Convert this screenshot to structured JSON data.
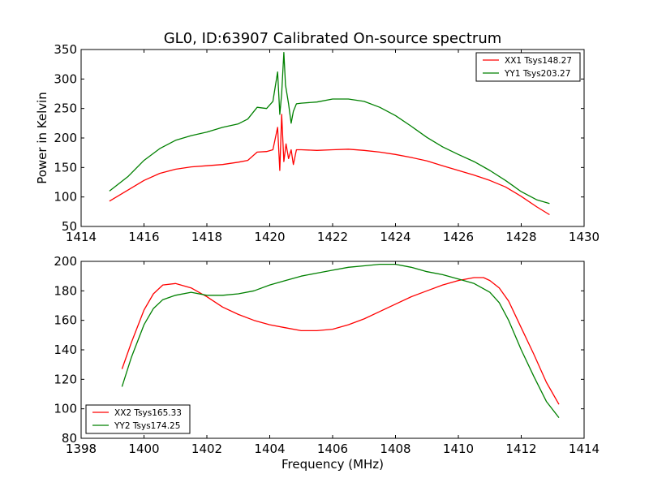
{
  "chart_data": [
    {
      "type": "line",
      "title": "GL0, ID:63907 Calibrated On-source spectrum",
      "xlabel": "",
      "ylabel": "Power in Kelvin",
      "xlim": [
        1414,
        1430
      ],
      "ylim": [
        50,
        350
      ],
      "xticks": [
        "1414",
        "1416",
        "1418",
        "1420",
        "1422",
        "1424",
        "1426",
        "1428",
        "1430"
      ],
      "yticks": [
        "50",
        "100",
        "150",
        "200",
        "250",
        "300",
        "350"
      ],
      "legend_position": "top-right",
      "series": [
        {
          "name": "XX1 Tsys148.27",
          "color": "#ff0000",
          "x": [
            1414.9,
            1415.5,
            1416.0,
            1416.5,
            1417.0,
            1417.5,
            1418.0,
            1418.5,
            1419.0,
            1419.3,
            1419.6,
            1419.9,
            1420.1,
            1420.25,
            1420.32,
            1420.38,
            1420.45,
            1420.52,
            1420.6,
            1420.68,
            1420.75,
            1420.85,
            1421.0,
            1421.5,
            1422.0,
            1422.5,
            1423.0,
            1423.5,
            1424.0,
            1424.5,
            1425.0,
            1425.5,
            1426.0,
            1426.5,
            1427.0,
            1427.5,
            1428.0,
            1428.5,
            1428.9
          ],
          "y": [
            93,
            112,
            128,
            140,
            147,
            151,
            153,
            155,
            159,
            162,
            176,
            177,
            180,
            218,
            145,
            240,
            160,
            190,
            165,
            180,
            155,
            180,
            180,
            179,
            180,
            181,
            179,
            176,
            172,
            167,
            161,
            153,
            145,
            137,
            128,
            117,
            101,
            83,
            70
          ]
        },
        {
          "name": "YY1 Tsys203.27",
          "color": "#008000",
          "x": [
            1414.9,
            1415.5,
            1416.0,
            1416.5,
            1417.0,
            1417.5,
            1418.0,
            1418.5,
            1419.0,
            1419.3,
            1419.6,
            1419.9,
            1420.1,
            1420.25,
            1420.32,
            1420.38,
            1420.45,
            1420.5,
            1420.6,
            1420.68,
            1420.75,
            1420.85,
            1421.0,
            1421.5,
            1422.0,
            1422.5,
            1423.0,
            1423.5,
            1424.0,
            1424.5,
            1425.0,
            1425.5,
            1426.0,
            1426.5,
            1427.0,
            1427.5,
            1428.0,
            1428.5,
            1428.9
          ],
          "y": [
            110,
            135,
            162,
            182,
            196,
            204,
            210,
            218,
            224,
            232,
            252,
            250,
            262,
            312,
            240,
            275,
            345,
            290,
            258,
            225,
            245,
            258,
            259,
            261,
            266,
            266,
            262,
            252,
            238,
            220,
            201,
            185,
            172,
            160,
            145,
            128,
            109,
            95,
            89
          ]
        }
      ]
    },
    {
      "type": "line",
      "title": "",
      "xlabel": "Frequency (MHz)",
      "ylabel": "",
      "xlim": [
        1398,
        1414
      ],
      "ylim": [
        80,
        200
      ],
      "xticks": [
        "1398",
        "1400",
        "1402",
        "1404",
        "1406",
        "1408",
        "1410",
        "1412",
        "1414"
      ],
      "yticks": [
        "80",
        "100",
        "120",
        "140",
        "160",
        "180",
        "200"
      ],
      "legend_position": "bottom-left",
      "series": [
        {
          "name": "XX2 Tsys165.33",
          "color": "#ff0000",
          "x": [
            1399.3,
            1399.6,
            1400.0,
            1400.3,
            1400.6,
            1401.0,
            1401.5,
            1402.0,
            1402.5,
            1403.0,
            1403.5,
            1404.0,
            1404.5,
            1405.0,
            1405.5,
            1406.0,
            1406.5,
            1407.0,
            1407.5,
            1408.0,
            1408.5,
            1409.0,
            1409.5,
            1410.0,
            1410.5,
            1410.8,
            1411.0,
            1411.3,
            1411.6,
            1412.0,
            1412.4,
            1412.8,
            1413.2
          ],
          "y": [
            127,
            145,
            167,
            178,
            184,
            185,
            182,
            176,
            169,
            164,
            160,
            157,
            155,
            153,
            153,
            154,
            157,
            161,
            166,
            171,
            176,
            180,
            184,
            187,
            189,
            189,
            187,
            182,
            173,
            155,
            137,
            118,
            103
          ]
        },
        {
          "name": "YY2 Tsys174.25",
          "color": "#008000",
          "x": [
            1399.3,
            1399.6,
            1400.0,
            1400.3,
            1400.6,
            1401.0,
            1401.5,
            1402.0,
            1402.5,
            1403.0,
            1403.5,
            1404.0,
            1404.5,
            1405.0,
            1405.5,
            1406.0,
            1406.5,
            1407.0,
            1407.5,
            1408.0,
            1408.5,
            1409.0,
            1409.5,
            1410.0,
            1410.5,
            1411.0,
            1411.3,
            1411.6,
            1412.0,
            1412.4,
            1412.8,
            1413.2
          ],
          "y": [
            115,
            135,
            157,
            168,
            174,
            177,
            179,
            177,
            177,
            178,
            180,
            184,
            187,
            190,
            192,
            194,
            196,
            197,
            198,
            198,
            196,
            193,
            191,
            188,
            185,
            179,
            172,
            160,
            140,
            122,
            105,
            94
          ]
        }
      ]
    }
  ]
}
